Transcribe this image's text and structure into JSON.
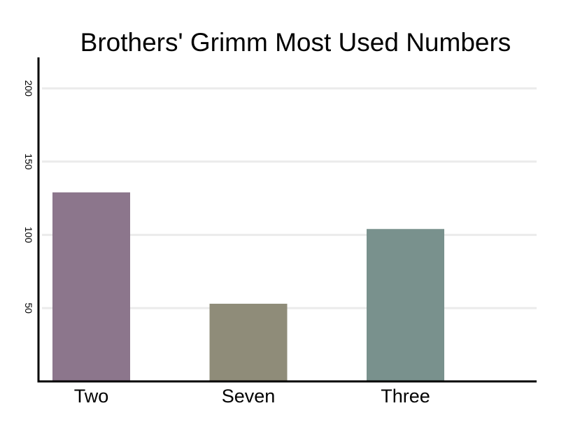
{
  "chart_data": {
    "type": "bar",
    "title": "Brothers' Grimm Most Used Numbers",
    "xlabel": "",
    "ylabel": "",
    "categories": [
      "Two",
      "Seven",
      "Three"
    ],
    "values": [
      129,
      53,
      104
    ],
    "colors": [
      "#8c768c",
      "#8f8c79",
      "#79918d"
    ],
    "ylim": [
      0,
      220
    ],
    "yticks": [
      50,
      100,
      150,
      200
    ],
    "grid": true,
    "grid_color": "#ebebeb"
  }
}
